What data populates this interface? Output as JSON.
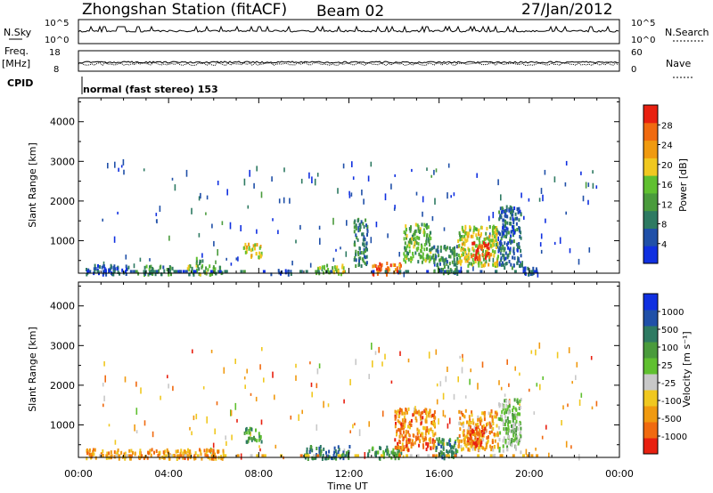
{
  "header": {
    "station": "Zhongshan Station (fitACF)",
    "beam": "Beam 02",
    "date": "27/Jan/2012",
    "mode_text": "normal (fast stereo) 153"
  },
  "strips": {
    "nsky_label": "N.Sky",
    "nsearch_label": "N.Search",
    "freq_label": "Freq.",
    "freq_unit": "[MHz]",
    "nave_label": "Nave",
    "cpid_label": "CPID",
    "nsky_ticks": [
      "10^5",
      "10^0"
    ],
    "nsearch_ticks": [
      "10^5",
      "10^0"
    ],
    "freq_ticks": [
      "18",
      "8"
    ],
    "nave_ticks": [
      "60",
      "0"
    ]
  },
  "chart_data": [
    {
      "type": "heatmap",
      "name": "power",
      "ylabel": "Slant Range [km]",
      "xlabel": "Time UT",
      "xlim": [
        "00:00",
        "24:00"
      ],
      "ylim": [
        180,
        4600
      ],
      "x_ticks": [
        "00:00",
        "04:00",
        "08:00",
        "12:00",
        "16:00",
        "20:00",
        "00:00"
      ],
      "y_ticks": [
        1000,
        2000,
        3000,
        4000
      ],
      "colorbar": {
        "label": "Power [dB]",
        "ticks": [
          "4",
          "8",
          "12",
          "16",
          "20",
          "24",
          "28"
        ],
        "range": [
          0,
          32
        ],
        "colors": [
          "#1030e0",
          "#2050a8",
          "#2e7a62",
          "#4a9b3c",
          "#60c030",
          "#f0c820",
          "#f09a10",
          "#f06a10",
          "#e82010"
        ]
      },
      "clusters": [
        {
          "t0": 0.3,
          "t1": 2.2,
          "r0": 180,
          "r1": 420,
          "level": 0.18
        },
        {
          "t0": 2.5,
          "t1": 4.2,
          "r0": 180,
          "r1": 400,
          "level": 0.32
        },
        {
          "t0": 4.8,
          "t1": 6.4,
          "r0": 180,
          "r1": 420,
          "level": 0.45
        },
        {
          "t0": 5.2,
          "t1": 5.6,
          "r0": 450,
          "r1": 600,
          "level": 0.35
        },
        {
          "t0": 7.3,
          "t1": 8.1,
          "r0": 600,
          "r1": 950,
          "level": 0.62
        },
        {
          "t0": 8.5,
          "t1": 9.5,
          "r0": 180,
          "r1": 300,
          "level": 0.12
        },
        {
          "t0": 10.5,
          "t1": 11.8,
          "r0": 180,
          "r1": 420,
          "level": 0.55
        },
        {
          "t0": 12.2,
          "t1": 12.8,
          "r0": 400,
          "r1": 1600,
          "level": 0.28
        },
        {
          "t0": 13.0,
          "t1": 14.3,
          "r0": 180,
          "r1": 480,
          "level": 0.8
        },
        {
          "t0": 14.4,
          "t1": 15.6,
          "r0": 500,
          "r1": 1450,
          "level": 0.45
        },
        {
          "t0": 15.6,
          "t1": 16.8,
          "r0": 200,
          "r1": 900,
          "level": 0.3
        },
        {
          "t0": 16.8,
          "t1": 18.6,
          "r0": 400,
          "r1": 1400,
          "level": 0.55
        },
        {
          "t0": 17.4,
          "t1": 18.2,
          "r0": 550,
          "r1": 1000,
          "level": 0.92
        },
        {
          "t0": 18.6,
          "t1": 19.6,
          "r0": 350,
          "r1": 1900,
          "level": 0.22
        },
        {
          "t0": 19.6,
          "t1": 20.4,
          "r0": 180,
          "r1": 380,
          "level": 0.15
        }
      ]
    },
    {
      "type": "heatmap",
      "name": "velocity",
      "ylabel": "Slant Range [km]",
      "xlabel": "Time UT",
      "xlim": [
        "00:00",
        "24:00"
      ],
      "ylim": [
        180,
        4600
      ],
      "x_ticks": [
        "00:00",
        "04:00",
        "08:00",
        "12:00",
        "16:00",
        "20:00",
        "00:00"
      ],
      "y_ticks": [
        1000,
        2000,
        3000,
        4000
      ],
      "colorbar": {
        "label": "Velocity [m s⁻¹]",
        "ticks": [
          "1000",
          "500",
          "100",
          "25",
          "-25",
          "-100",
          "-500",
          "-1000"
        ],
        "colors": [
          "#1030e0",
          "#2050a8",
          "#2e7a62",
          "#4a9b3c",
          "#60c030",
          "#c8c8c8",
          "#f0c820",
          "#f09a10",
          "#f06a10",
          "#e82010"
        ]
      },
      "clusters": [
        {
          "t0": 0.3,
          "t1": 6.4,
          "r0": 180,
          "r1": 420,
          "level": 0.75
        },
        {
          "t0": 7.3,
          "t1": 8.1,
          "r0": 600,
          "r1": 950,
          "level": 0.35
        },
        {
          "t0": 10.0,
          "t1": 12.0,
          "r0": 180,
          "r1": 500,
          "level": 0.25
        },
        {
          "t0": 12.8,
          "t1": 14.3,
          "r0": 180,
          "r1": 480,
          "level": 0.35
        },
        {
          "t0": 14.0,
          "t1": 15.8,
          "r0": 400,
          "r1": 1450,
          "level": 0.8
        },
        {
          "t0": 15.8,
          "t1": 16.8,
          "r0": 180,
          "r1": 700,
          "level": 0.3
        },
        {
          "t0": 16.8,
          "t1": 18.6,
          "r0": 400,
          "r1": 1400,
          "level": 0.72
        },
        {
          "t0": 17.2,
          "t1": 18.0,
          "r0": 500,
          "r1": 1000,
          "level": 0.9
        },
        {
          "t0": 18.6,
          "t1": 19.6,
          "r0": 350,
          "r1": 1700,
          "level": 0.45
        }
      ]
    }
  ]
}
